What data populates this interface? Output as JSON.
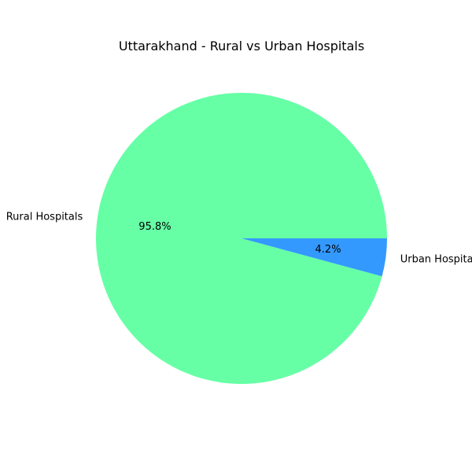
{
  "chart_data": {
    "type": "pie",
    "title": "Uttarakhand - Rural vs Urban Hospitals",
    "labels": [
      "Rural Hospitals",
      "Urban Hospitals"
    ],
    "values": [
      95.8,
      4.2
    ],
    "value_labels": [
      "95.8%",
      "4.2%"
    ],
    "colors": [
      "#66ffa6",
      "#3399ff"
    ],
    "start_angle_deg": 0,
    "direction": "counterclockwise"
  }
}
